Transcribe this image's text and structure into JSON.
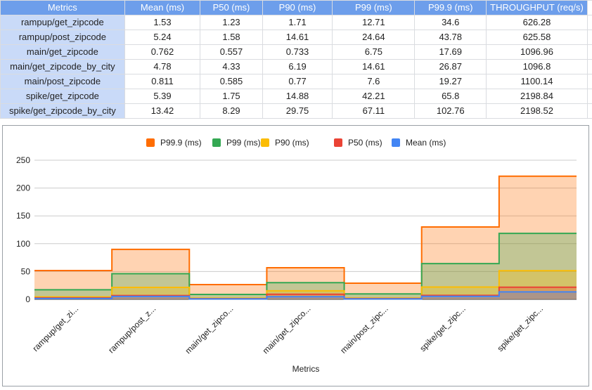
{
  "table": {
    "headers": [
      "Metrics",
      "Mean (ms)",
      "P50 (ms)",
      "P90 (ms)",
      "P99 (ms)",
      "P99.9 (ms)",
      "THROUGHPUT (req/s)"
    ],
    "rows": [
      [
        "rampup/get_zipcode",
        "1.53",
        "1.23",
        "1.71",
        "12.71",
        "34.6",
        "626.28"
      ],
      [
        "rampup/post_zipcode",
        "5.24",
        "1.58",
        "14.61",
        "24.64",
        "43.78",
        "625.58"
      ],
      [
        "main/get_zipcode",
        "0.762",
        "0.557",
        "0.733",
        "6.75",
        "17.69",
        "1096.96"
      ],
      [
        "main/get_zipcode_by_city",
        "4.78",
        "4.33",
        "6.19",
        "14.61",
        "26.87",
        "1096.8"
      ],
      [
        "main/post_zipcode",
        "0.811",
        "0.585",
        "0.77",
        "7.6",
        "19.27",
        "1100.14"
      ],
      [
        "spike/get_zipcode",
        "5.39",
        "1.75",
        "14.88",
        "42.21",
        "65.8",
        "2198.84"
      ],
      [
        "spike/get_zipcode_by_city",
        "13.42",
        "8.29",
        "29.75",
        "67.11",
        "102.76",
        "2198.52"
      ]
    ]
  },
  "chart_data": {
    "type": "area",
    "stacked": true,
    "stepped": true,
    "categories": [
      "rampup/get_zi...",
      "rampup/post_z...",
      "main/get_zipco...",
      "main/get_zipco...",
      "main/post_zipc...",
      "spike/get_zipc...",
      "spike/get_zipc..."
    ],
    "series": [
      {
        "name": "Mean (ms)",
        "color": "#4285f4",
        "values": [
          1.53,
          5.24,
          0.762,
          4.78,
          0.811,
          5.39,
          13.42
        ]
      },
      {
        "name": "P50 (ms)",
        "color": "#ea4335",
        "values": [
          1.23,
          1.58,
          0.557,
          4.33,
          0.585,
          1.75,
          8.29
        ]
      },
      {
        "name": "P90 (ms)",
        "color": "#fbbc04",
        "values": [
          1.71,
          14.61,
          0.733,
          6.19,
          0.77,
          14.88,
          29.75
        ]
      },
      {
        "name": "P99 (ms)",
        "color": "#34a853",
        "values": [
          12.71,
          24.64,
          6.75,
          14.61,
          7.6,
          42.21,
          67.11
        ]
      },
      {
        "name": "P99.9 (ms)",
        "color": "#ff6d01",
        "values": [
          34.6,
          43.78,
          17.69,
          26.87,
          19.27,
          65.8,
          102.76
        ]
      }
    ],
    "legend_order": [
      "P99.9 (ms)",
      "P99 (ms)",
      "P90 (ms)",
      "P50 (ms)",
      "Mean (ms)"
    ],
    "legend_position": "top",
    "xlabel": "Metrics",
    "ylabel": "",
    "ylim": [
      0,
      250
    ],
    "yticks": [
      0,
      50,
      100,
      150,
      200,
      250
    ],
    "grid": true
  }
}
